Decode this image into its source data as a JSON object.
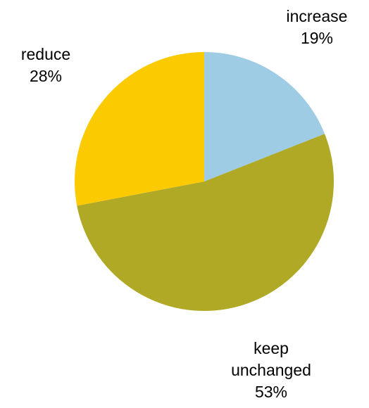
{
  "chart_data": {
    "type": "pie",
    "title": "",
    "start_angle_deg": 0,
    "direction": "clockwise",
    "slices": [
      {
        "label_lines": [
          "increase"
        ],
        "value": 19,
        "value_label": "19%",
        "color": "#9dcce4"
      },
      {
        "label_lines": [
          "keep",
          "unchanged"
        ],
        "value": 53,
        "value_label": "53%",
        "color": "#b0a925"
      },
      {
        "label_lines": [
          "reduce"
        ],
        "value": 28,
        "value_label": "28%",
        "color": "#fcca00"
      }
    ],
    "legend": "none",
    "labels": "outside"
  }
}
